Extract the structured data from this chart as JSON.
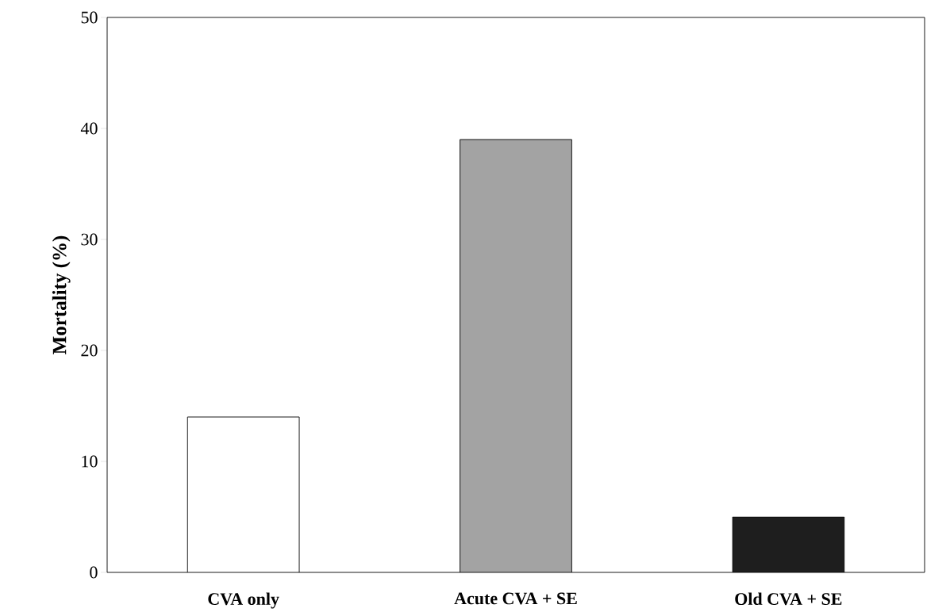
{
  "chart_data": {
    "type": "bar",
    "ylabel": "Mortality (%)",
    "categories": [
      "CVA only",
      "Acute CVA + SE",
      "Old CVA + SE"
    ],
    "values": [
      14,
      39,
      5
    ],
    "colors": [
      "#ffffff",
      "#a3a3a3",
      "#1e1e1e"
    ],
    "ylim": [
      0,
      50
    ],
    "yticks": [
      0,
      10,
      20,
      30,
      40,
      50
    ]
  }
}
